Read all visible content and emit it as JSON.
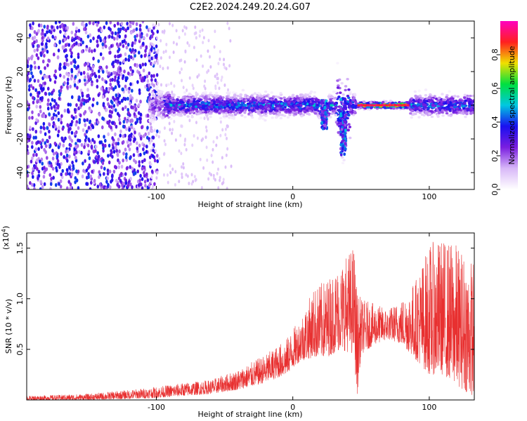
{
  "chart_data": [
    {
      "type": "heatmap",
      "title": "C2E2.2024.249.20.24.G07",
      "xlabel": "Height of straight line (km)",
      "ylabel": "Frequency (Hz)",
      "xlim": [
        -195,
        133
      ],
      "ylim": [
        -50,
        50
      ],
      "xticks": [
        "-100",
        "0",
        "100"
      ],
      "yticks": [
        "40",
        "20",
        "0",
        "-20",
        "-40"
      ],
      "grid": false,
      "colorbar": {
        "label": "Normalized spectral amplitude",
        "range": [
          0,
          1
        ],
        "ticks": [
          "0.0",
          "0.2",
          "0.4",
          "0.6",
          "0.8"
        ],
        "colormap": [
          "#ffffff",
          "#d8b8f8",
          "#7a1ee0",
          "#1a10f0",
          "#00c8e0",
          "#00e040",
          "#f0e000",
          "#ff2020",
          "#ff00c0"
        ]
      },
      "regions": [
        {
          "x_from": -195,
          "x_to": -105,
          "description": "broadband noise, amplitude 0.2-0.5"
        },
        {
          "x_from": -105,
          "x_to": 133,
          "center_hz": 0,
          "peak_amplitude": 1.0
        }
      ],
      "features": [
        {
          "x": 23,
          "y_min_hz": -14,
          "y_max_hz": 3
        },
        {
          "x": 37,
          "y_min_hz": -30,
          "y_max_hz": 4
        },
        {
          "x_from": 48,
          "x_to": 85,
          "y_hz": 0,
          "amplitude": 0.95
        }
      ]
    },
    {
      "type": "line",
      "xlabel": "Height of straight line (km)",
      "ylabel": "SNR (10 * v/v)",
      "y_multiplier": "(x10",
      "y_multiplier_exp": "4",
      "y_multiplier_close": ")",
      "xlim": [
        -195,
        133
      ],
      "ylim": [
        0,
        1.65
      ],
      "xticks": [
        "-100",
        "0",
        "100"
      ],
      "yticks": [
        "1.5",
        "1.0",
        "0.5"
      ],
      "grid": false,
      "color": "#e83030",
      "series": [
        {
          "envelope": [
            {
              "x": -195,
              "low": 0.0,
              "high": 0.04
            },
            {
              "x": -150,
              "low": 0.0,
              "high": 0.06
            },
            {
              "x": -120,
              "low": 0.01,
              "high": 0.1
            },
            {
              "x": -100,
              "low": 0.02,
              "high": 0.13
            },
            {
              "x": -80,
              "low": 0.04,
              "high": 0.17
            },
            {
              "x": -60,
              "low": 0.06,
              "high": 0.2
            },
            {
              "x": -40,
              "low": 0.1,
              "high": 0.3
            },
            {
              "x": -20,
              "low": 0.17,
              "high": 0.45
            },
            {
              "x": -5,
              "low": 0.25,
              "high": 0.6
            },
            {
              "x": 5,
              "low": 0.38,
              "high": 0.8
            },
            {
              "x": 15,
              "low": 0.42,
              "high": 1.1
            },
            {
              "x": 25,
              "low": 0.42,
              "high": 1.2
            },
            {
              "x": 35,
              "low": 0.5,
              "high": 1.35
            },
            {
              "x": 45,
              "low": 0.45,
              "high": 1.55
            },
            {
              "x": 47,
              "low": 0.02,
              "high": 1.1
            },
            {
              "x": 50,
              "low": 0.45,
              "high": 1.0
            },
            {
              "x": 60,
              "low": 0.55,
              "high": 0.95
            },
            {
              "x": 70,
              "low": 0.6,
              "high": 0.9
            },
            {
              "x": 80,
              "low": 0.55,
              "high": 1.0
            },
            {
              "x": 90,
              "low": 0.4,
              "high": 1.2
            },
            {
              "x": 100,
              "low": 0.25,
              "high": 1.55
            },
            {
              "x": 110,
              "low": 0.25,
              "high": 1.6
            },
            {
              "x": 120,
              "low": 0.15,
              "high": 1.55
            },
            {
              "x": 130,
              "low": 0.05,
              "high": 1.4
            }
          ]
        }
      ]
    }
  ]
}
